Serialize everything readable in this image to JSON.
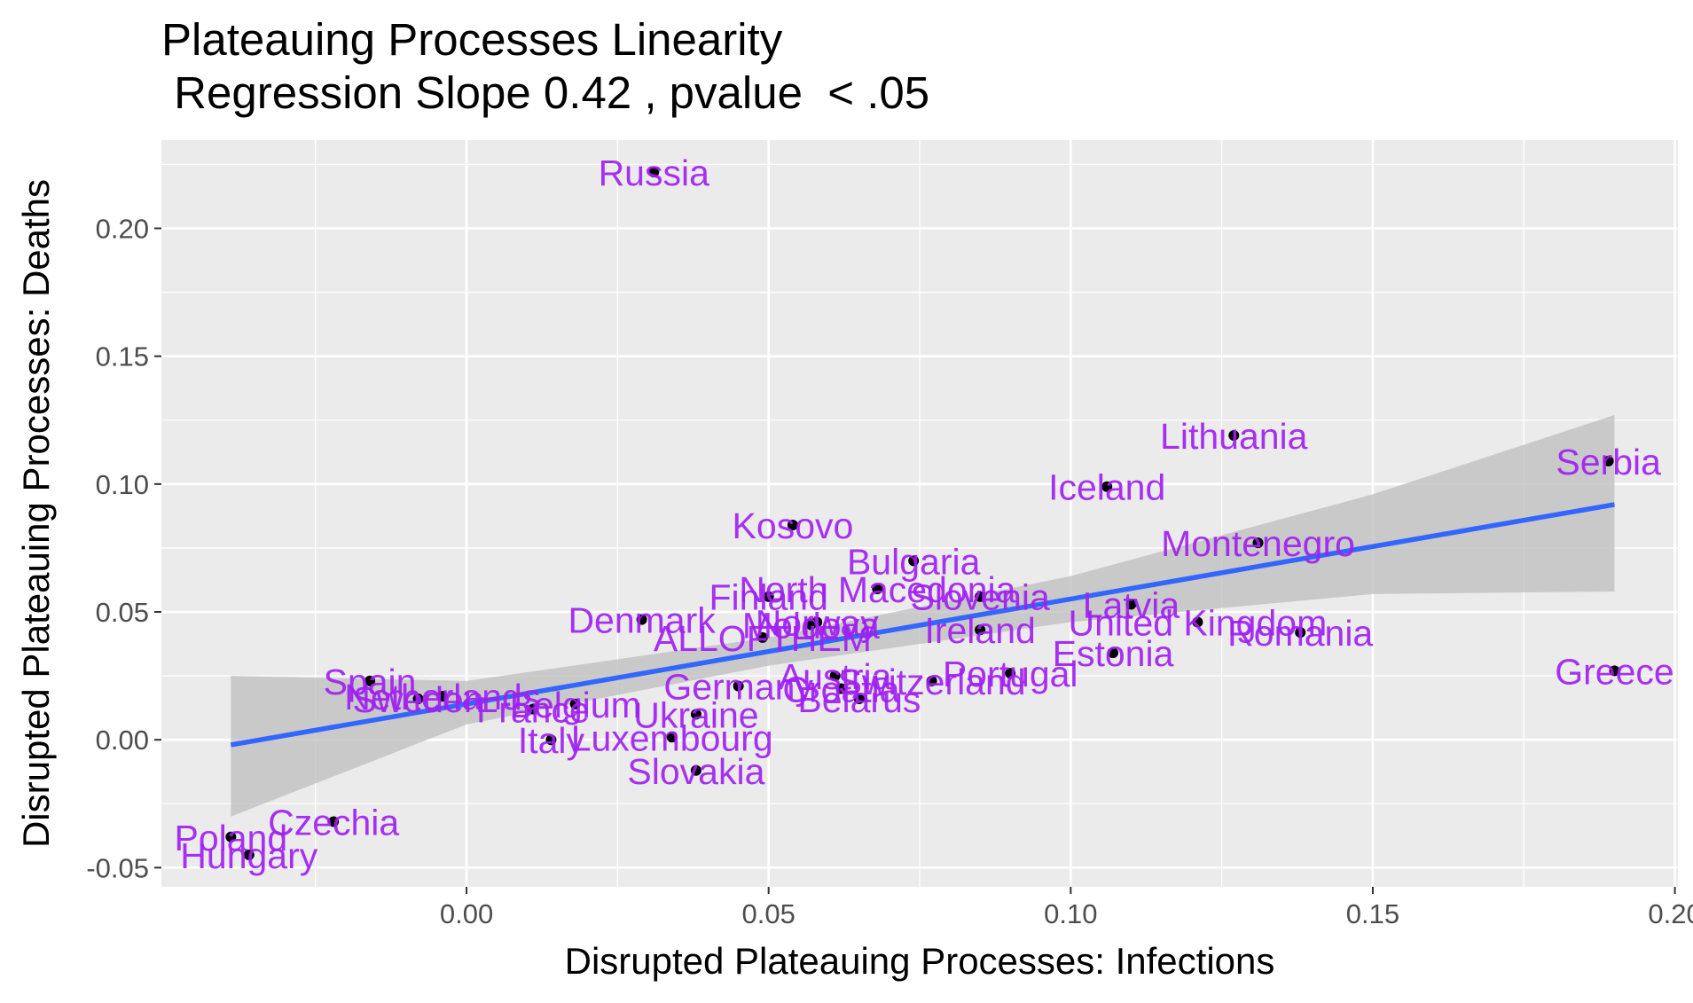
{
  "chart_data": {
    "type": "scatter",
    "title": "Plateauing Processes Linearity",
    "subtitle": " Regression Slope 0.42 , pvalue  < .05",
    "xlabel": "Disrupted Plateauing Processes: Infections",
    "ylabel": "Disrupted Plateauing Processes: Deaths",
    "xlim": [
      -0.0505,
      0.2005
    ],
    "ylim": [
      -0.0575,
      0.2345
    ],
    "x_ticks": [
      0.0,
      0.05,
      0.1,
      0.15,
      0.2
    ],
    "x_tick_labels": [
      "0.00",
      "0.05",
      "0.10",
      "0.15",
      "0.20"
    ],
    "y_ticks": [
      -0.05,
      0.0,
      0.05,
      0.1,
      0.15,
      0.2
    ],
    "y_tick_labels": [
      "-0.05",
      "0.00",
      "0.05",
      "0.10",
      "0.15",
      "0.20"
    ],
    "grid": true,
    "point_label_color": "#a020f0",
    "point_color": "#000000",
    "regression_line_color": "#3366ff",
    "ribbon_color": "#bdbdbd",
    "panel_background": "#ebebeb",
    "points": [
      {
        "label": "Russia",
        "x": 0.031,
        "y": 0.222
      },
      {
        "label": "Lithuania",
        "x": 0.127,
        "y": 0.119
      },
      {
        "label": "Serbia",
        "x": 0.189,
        "y": 0.109
      },
      {
        "label": "Iceland",
        "x": 0.106,
        "y": 0.099
      },
      {
        "label": "Kosovo",
        "x": 0.054,
        "y": 0.084
      },
      {
        "label": "Montenegro",
        "x": 0.131,
        "y": 0.077
      },
      {
        "label": "Bulgaria",
        "x": 0.074,
        "y": 0.07
      },
      {
        "label": "North Macedonia",
        "x": 0.068,
        "y": 0.059
      },
      {
        "label": "Finland",
        "x": 0.05,
        "y": 0.056
      },
      {
        "label": "Slovenia",
        "x": 0.085,
        "y": 0.056
      },
      {
        "label": "Latvia",
        "x": 0.11,
        "y": 0.053
      },
      {
        "label": "Denmark",
        "x": 0.029,
        "y": 0.047
      },
      {
        "label": "Norway",
        "x": 0.058,
        "y": 0.046
      },
      {
        "label": "Moldova",
        "x": 0.057,
        "y": 0.045
      },
      {
        "label": "United Kingdom",
        "x": 0.121,
        "y": 0.046
      },
      {
        "label": "Ireland",
        "x": 0.085,
        "y": 0.043
      },
      {
        "label": "Romania",
        "x": 0.138,
        "y": 0.042
      },
      {
        "label": "ALLOFTHEM",
        "x": 0.049,
        "y": 0.04
      },
      {
        "label": "Estonia",
        "x": 0.107,
        "y": 0.034
      },
      {
        "label": "Greece",
        "x": 0.19,
        "y": 0.027
      },
      {
        "label": "Portugal",
        "x": 0.09,
        "y": 0.026
      },
      {
        "label": "Austria",
        "x": 0.061,
        "y": 0.025
      },
      {
        "label": "Spain",
        "x": -0.016,
        "y": 0.023
      },
      {
        "label": "Switzerland",
        "x": 0.077,
        "y": 0.023
      },
      {
        "label": "Germany",
        "x": 0.045,
        "y": 0.021
      },
      {
        "label": "Croatia",
        "x": 0.062,
        "y": 0.02
      },
      {
        "label": "Netherlands",
        "x": -0.004,
        "y": 0.017
      },
      {
        "label": "Belarus",
        "x": 0.065,
        "y": 0.016
      },
      {
        "label": "Sweden",
        "x": -0.008,
        "y": 0.016
      },
      {
        "label": "Belgium",
        "x": 0.018,
        "y": 0.014
      },
      {
        "label": "France",
        "x": 0.011,
        "y": 0.012
      },
      {
        "label": "Ukraine",
        "x": 0.038,
        "y": 0.01
      },
      {
        "label": "Italy",
        "x": 0.014,
        "y": 0.0
      },
      {
        "label": "Luxembourg",
        "x": 0.034,
        "y": 0.001
      },
      {
        "label": "Slovakia",
        "x": 0.038,
        "y": -0.012
      },
      {
        "label": "Czechia",
        "x": -0.022,
        "y": -0.032
      },
      {
        "label": "Poland",
        "x": -0.039,
        "y": -0.038
      },
      {
        "label": "Hungary",
        "x": -0.036,
        "y": -0.045
      }
    ],
    "regression": {
      "x_range": [
        -0.039,
        0.19
      ],
      "fit": [
        {
          "x": -0.039,
          "y": -0.002
        },
        {
          "x": 0.19,
          "y": 0.092
        }
      ],
      "ci": [
        {
          "x": -0.039,
          "lower": -0.03,
          "upper": 0.025
        },
        {
          "x": 0.0,
          "lower": 0.006,
          "upper": 0.023
        },
        {
          "x": 0.05,
          "lower": 0.029,
          "upper": 0.04
        },
        {
          "x": 0.1,
          "lower": 0.046,
          "upper": 0.064
        },
        {
          "x": 0.15,
          "lower": 0.057,
          "upper": 0.096
        },
        {
          "x": 0.19,
          "lower": 0.058,
          "upper": 0.127
        }
      ]
    }
  }
}
